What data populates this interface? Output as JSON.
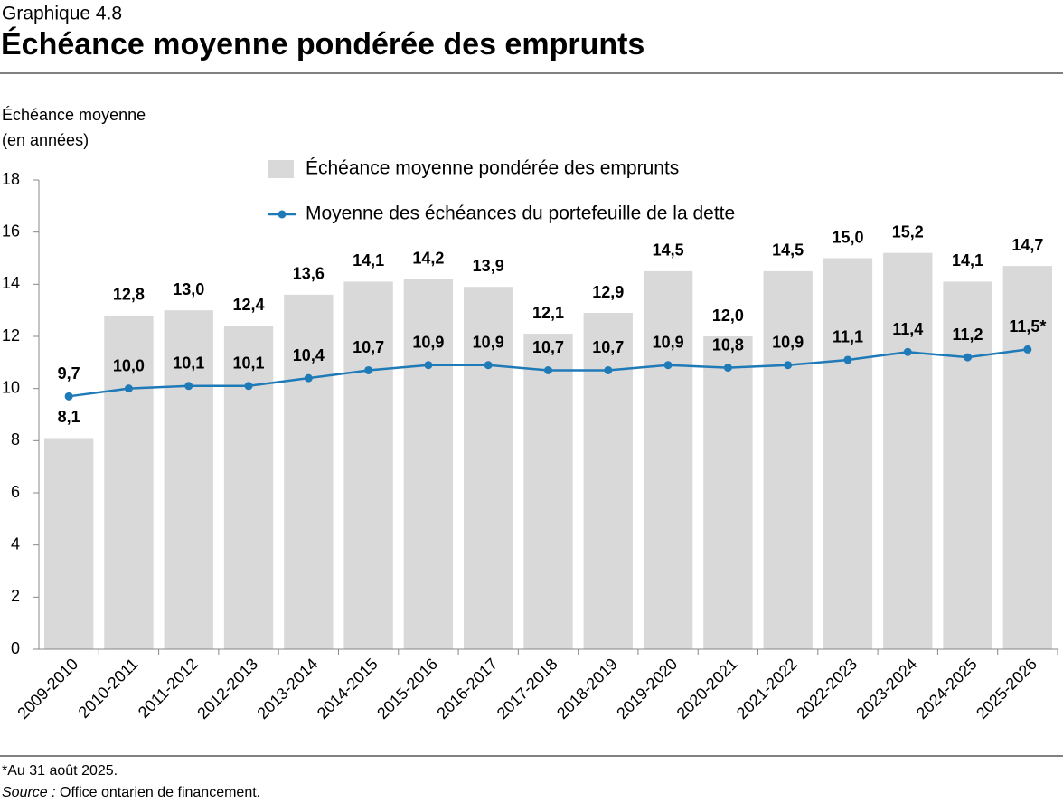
{
  "header": {
    "label": "Graphique 4.8",
    "title": "Échéance moyenne pondérée des emprunts"
  },
  "chart_data": {
    "type": "bar",
    "y_label": [
      "Échéance moyenne",
      "(en années)"
    ],
    "categories": [
      "2009-2010",
      "2010-2011",
      "2011-2012",
      "2012-2013",
      "2013-2014",
      "2014-2015",
      "2015-2016",
      "2016-2017",
      "2017-2018",
      "2018-2019",
      "2019-2020",
      "2020-2021",
      "2021-2022",
      "2022-2023",
      "2023-2024",
      "2024-2025",
      "2025-2026"
    ],
    "series": [
      {
        "name": "Échéance moyenne pondérée des emprunts",
        "type": "bar",
        "color": "#d9d9d9",
        "values": [
          8.1,
          12.8,
          13.0,
          12.4,
          13.6,
          14.1,
          14.2,
          13.9,
          12.1,
          12.9,
          14.5,
          12.0,
          14.5,
          15.0,
          15.2,
          14.1,
          14.7
        ],
        "value_labels": [
          "8,1",
          "12,8",
          "13,0",
          "12,4",
          "13,6",
          "14,1",
          "14,2",
          "13,9",
          "12,1",
          "12,9",
          "14,5",
          "12,0",
          "14,5",
          "15,0",
          "15,2",
          "14,1",
          "14,7"
        ]
      },
      {
        "name": "Moyenne des échéances du portefeuille de la dette",
        "type": "line",
        "color": "#1f7ab8",
        "values": [
          9.7,
          10.0,
          10.1,
          10.1,
          10.4,
          10.7,
          10.9,
          10.9,
          10.7,
          10.7,
          10.9,
          10.8,
          10.9,
          11.1,
          11.4,
          11.2,
          11.5
        ],
        "value_labels": [
          "9,7",
          "10,0",
          "10,1",
          "10,1",
          "10,4",
          "10,7",
          "10,9",
          "10,9",
          "10,7",
          "10,7",
          "10,9",
          "10,8",
          "10,9",
          "11,1",
          "11,4",
          "11,2",
          "11,5*"
        ]
      }
    ],
    "ylim": [
      0,
      18
    ],
    "yticks": [
      0,
      2,
      4,
      6,
      8,
      10,
      12,
      14,
      16,
      18
    ]
  },
  "notes": {
    "footnote": "*Au 31 août 2025.",
    "source_label": "Source :",
    "source_text": "Office ontarien de financement."
  }
}
